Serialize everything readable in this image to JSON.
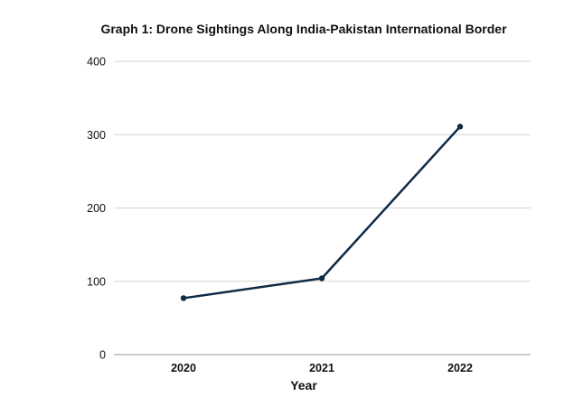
{
  "chart_data": {
    "type": "line",
    "title": "Graph 1: Drone Sightings Along India-Pakistan International Border",
    "xlabel": "Year",
    "ylabel": "",
    "categories": [
      "2020",
      "2021",
      "2022"
    ],
    "series": [
      {
        "values": [
          77,
          104,
          311
        ]
      }
    ],
    "ylim": [
      0,
      400
    ],
    "yticks": [
      "0",
      "100",
      "200",
      "300",
      "400"
    ],
    "grid": true,
    "legend": "none",
    "colors": {
      "line": "#0e2a45",
      "grid": "#d4d4d4",
      "baseline": "#9a9a9a"
    }
  }
}
